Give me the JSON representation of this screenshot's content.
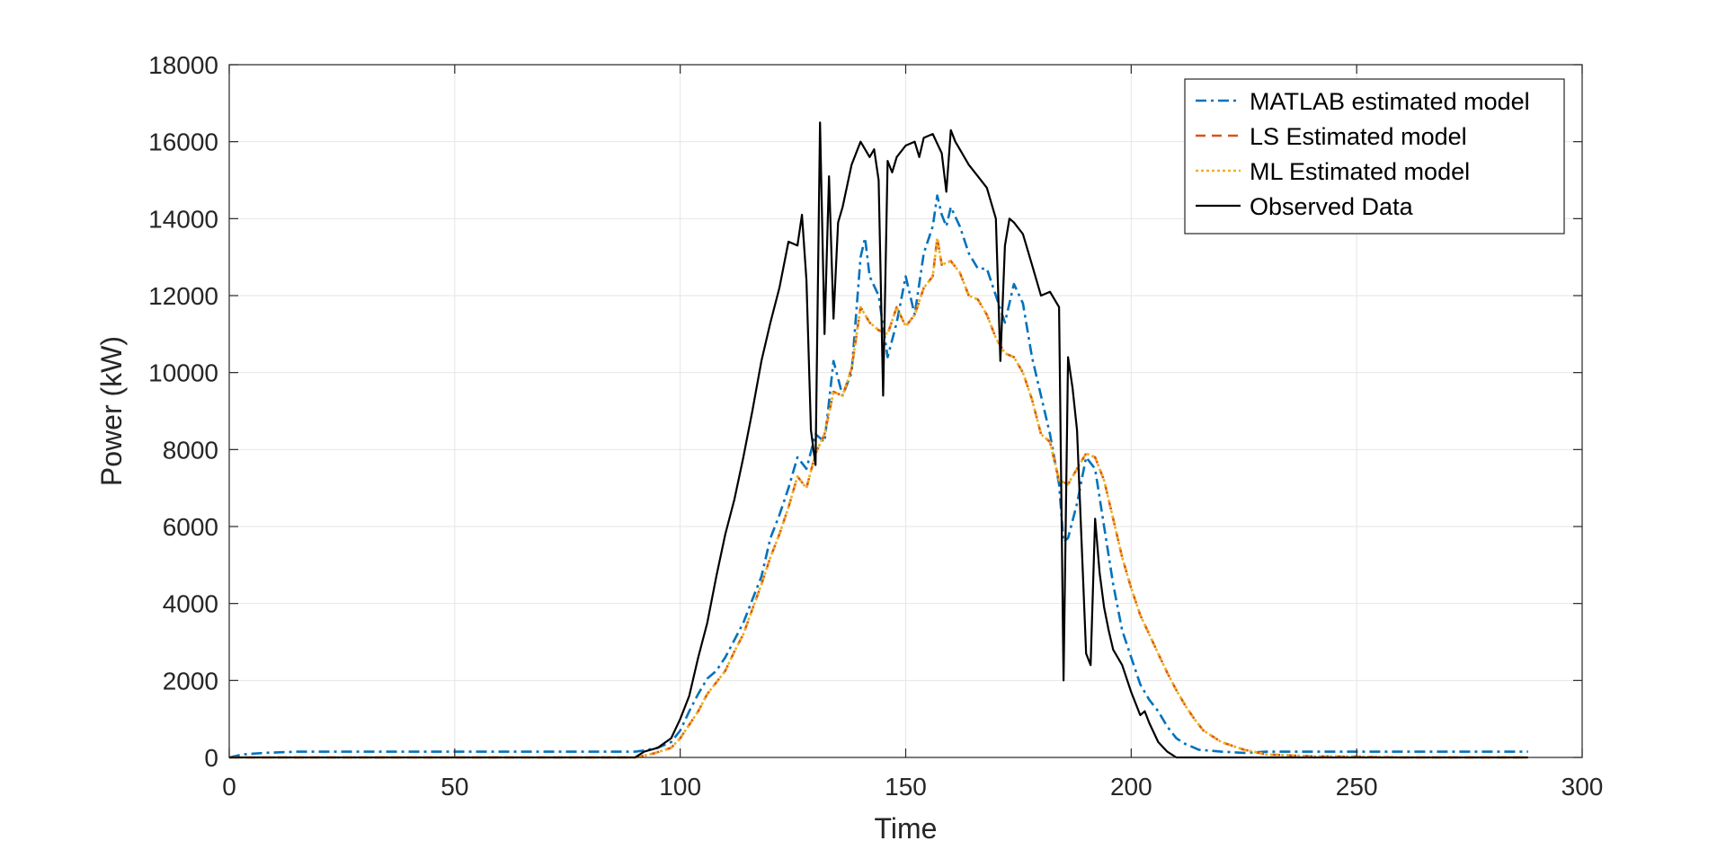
{
  "chart_data": {
    "type": "line",
    "title": "",
    "xlabel": "Time",
    "ylabel": "Power (kW)",
    "xlim": [
      0,
      300
    ],
    "ylim": [
      0,
      18000
    ],
    "xticks": [
      0,
      50,
      100,
      150,
      200,
      250,
      300
    ],
    "yticks": [
      0,
      2000,
      4000,
      6000,
      8000,
      10000,
      12000,
      14000,
      16000,
      18000
    ],
    "xtick_labels": [
      "0",
      "50",
      "100",
      "150",
      "200",
      "250",
      "300"
    ],
    "ytick_labels": [
      "0",
      "2000",
      "4000",
      "6000",
      "8000",
      "10000",
      "12000",
      "14000",
      "16000",
      "18000"
    ],
    "grid": true,
    "legend_position": "top-right",
    "series": [
      {
        "name": "MATLAB estimated model",
        "color": "#0072BD",
        "style": "dash-dot",
        "x": [
          0,
          3,
          8,
          15,
          30,
          50,
          70,
          90,
          92,
          95,
          98,
          100,
          102,
          104,
          106,
          108,
          110,
          112,
          114,
          116,
          118,
          120,
          122,
          124,
          126,
          128,
          130,
          132,
          134,
          136,
          138,
          140,
          141,
          142,
          144,
          146,
          148,
          150,
          152,
          154,
          156,
          157,
          158,
          159,
          160,
          162,
          164,
          166,
          168,
          170,
          172,
          174,
          176,
          178,
          180,
          182,
          184,
          185,
          186,
          188,
          190,
          192,
          194,
          196,
          198,
          200,
          202,
          204,
          206,
          208,
          210,
          212,
          215,
          220,
          225,
          230,
          240,
          250,
          260,
          270,
          280,
          288
        ],
        "y": [
          0,
          80,
          120,
          150,
          150,
          150,
          150,
          150,
          180,
          250,
          400,
          700,
          1200,
          1650,
          2050,
          2250,
          2600,
          3050,
          3500,
          4100,
          4700,
          5700,
          6300,
          7000,
          7800,
          7500,
          8400,
          8200,
          10300,
          9400,
          10000,
          13000,
          13500,
          12500,
          12000,
          10400,
          11300,
          12500,
          11500,
          13100,
          13800,
          14600,
          14100,
          13800,
          14300,
          13800,
          13100,
          12700,
          12700,
          12000,
          11300,
          12300,
          11800,
          10400,
          9400,
          8400,
          7100,
          5600,
          5700,
          6600,
          7800,
          7500,
          6000,
          4500,
          3300,
          2600,
          1900,
          1500,
          1200,
          800,
          500,
          350,
          200,
          150,
          120,
          150,
          150,
          150,
          150,
          150,
          150,
          150
        ]
      },
      {
        "name": "LS Estimated model",
        "color": "#D95319",
        "style": "dashed",
        "x": [
          0,
          10,
          50,
          90,
          94,
          98,
          100,
          102,
          104,
          106,
          108,
          110,
          112,
          114,
          116,
          118,
          120,
          122,
          124,
          126,
          128,
          130,
          132,
          134,
          136,
          138,
          140,
          142,
          144,
          146,
          148,
          150,
          152,
          154,
          156,
          157,
          158,
          160,
          162,
          164,
          166,
          168,
          170,
          172,
          174,
          176,
          178,
          180,
          182,
          184,
          186,
          188,
          190,
          192,
          194,
          196,
          198,
          200,
          202,
          204,
          206,
          208,
          210,
          212,
          214,
          216,
          220,
          225,
          230,
          240,
          250,
          260,
          270,
          280,
          288
        ],
        "y": [
          0,
          0,
          0,
          0,
          100,
          250,
          500,
          850,
          1200,
          1650,
          1950,
          2250,
          2750,
          3200,
          3850,
          4500,
          5200,
          5800,
          6500,
          7300,
          7000,
          7900,
          8400,
          9500,
          9400,
          10100,
          11700,
          11300,
          11100,
          11000,
          11700,
          11200,
          11500,
          12200,
          12500,
          13500,
          12800,
          12900,
          12600,
          12000,
          11900,
          11500,
          10900,
          10500,
          10400,
          10000,
          9300,
          8400,
          8200,
          7200,
          7100,
          7500,
          7900,
          7800,
          7200,
          6200,
          5200,
          4400,
          3700,
          3200,
          2700,
          2200,
          1750,
          1350,
          1000,
          700,
          400,
          200,
          80,
          30,
          20,
          0,
          0,
          0,
          0
        ]
      },
      {
        "name": "ML Estimated model",
        "color": "#EDB120",
        "style": "dotted",
        "x": [
          0,
          10,
          50,
          90,
          94,
          98,
          100,
          102,
          104,
          106,
          108,
          110,
          112,
          114,
          116,
          118,
          120,
          122,
          124,
          126,
          128,
          130,
          132,
          134,
          136,
          138,
          140,
          142,
          144,
          146,
          148,
          150,
          152,
          154,
          156,
          157,
          158,
          160,
          162,
          164,
          166,
          168,
          170,
          172,
          174,
          176,
          178,
          180,
          182,
          184,
          186,
          188,
          190,
          192,
          194,
          196,
          198,
          200,
          202,
          204,
          206,
          208,
          210,
          212,
          214,
          216,
          220,
          225,
          230,
          240,
          250,
          260,
          270,
          280,
          288
        ],
        "y": [
          0,
          0,
          0,
          0,
          100,
          250,
          500,
          850,
          1200,
          1650,
          1950,
          2250,
          2750,
          3200,
          3850,
          4500,
          5200,
          5800,
          6500,
          7300,
          7000,
          7900,
          8400,
          9500,
          9400,
          10100,
          11700,
          11300,
          11100,
          11000,
          11700,
          11200,
          11500,
          12200,
          12500,
          13500,
          12800,
          12900,
          12600,
          12000,
          11900,
          11500,
          10900,
          10500,
          10400,
          10000,
          9300,
          8400,
          8200,
          7200,
          7100,
          7500,
          7900,
          7800,
          7200,
          6200,
          5200,
          4400,
          3700,
          3200,
          2700,
          2200,
          1750,
          1350,
          1000,
          700,
          400,
          200,
          80,
          30,
          20,
          0,
          0,
          0,
          0
        ]
      },
      {
        "name": "Observed Data",
        "color": "#000000",
        "style": "solid",
        "x": [
          0,
          10,
          50,
          90,
          92,
          95,
          98,
          100,
          102,
          104,
          106,
          108,
          110,
          112,
          114,
          116,
          118,
          120,
          122,
          124,
          126,
          127,
          128,
          129,
          130,
          131,
          132,
          133,
          134,
          135,
          136,
          138,
          140,
          142,
          143,
          144,
          145,
          146,
          147,
          148,
          150,
          152,
          153,
          154,
          156,
          158,
          159,
          160,
          161,
          162,
          164,
          166,
          168,
          170,
          171,
          172,
          173,
          174,
          176,
          178,
          180,
          182,
          184,
          185,
          186,
          187,
          188,
          190,
          191,
          192,
          193,
          194,
          195,
          196,
          198,
          200,
          202,
          203,
          204,
          206,
          208,
          210,
          212,
          214,
          220,
          250,
          288
        ],
        "y": [
          0,
          0,
          0,
          0,
          150,
          250,
          500,
          1000,
          1600,
          2600,
          3500,
          4700,
          5800,
          6700,
          7800,
          9000,
          10300,
          11300,
          12200,
          13400,
          13300,
          14100,
          12400,
          8500,
          7600,
          16500,
          11000,
          15100,
          11400,
          13900,
          14300,
          15400,
          16000,
          15600,
          15800,
          15000,
          9400,
          15500,
          15200,
          15600,
          15900,
          16000,
          15600,
          16100,
          16200,
          15700,
          14700,
          16300,
          16000,
          15800,
          15400,
          15100,
          14800,
          14000,
          10300,
          13300,
          14000,
          13900,
          13600,
          12800,
          12000,
          12100,
          11700,
          2000,
          10400,
          9600,
          8500,
          2700,
          2400,
          6200,
          4800,
          3900,
          3300,
          2800,
          2400,
          1700,
          1100,
          1200,
          900,
          400,
          150,
          0,
          0,
          0,
          0,
          0,
          0
        ]
      }
    ]
  }
}
